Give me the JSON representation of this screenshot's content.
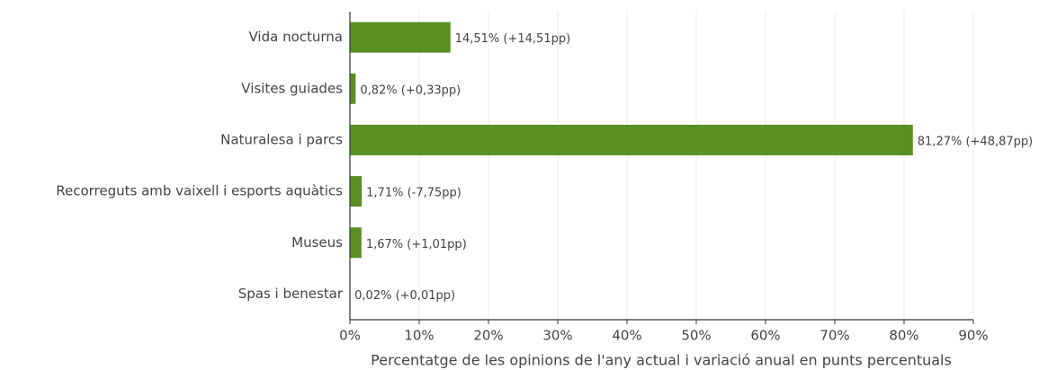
{
  "chart_data": {
    "type": "barh",
    "categories": [
      "Vida nocturna",
      "Visites guiades",
      "Naturalesa i parcs",
      "Recorreguts amb vaixell i esports aquàtics",
      "Museus",
      "Spas i benestar"
    ],
    "values": [
      14.51,
      0.82,
      81.27,
      1.71,
      1.67,
      0.02
    ],
    "value_labels": [
      "14,51% (+14,51pp)",
      "0,82% (+0,33pp)",
      "81,27% (+48,87pp)",
      "1,71% (-7,75pp)",
      "1,67% (+1,01pp)",
      "0,02% (+0,01pp)"
    ],
    "color": "#5b8f22",
    "xlabel": "Percentatge de les opinions de l'any actual i variació anual en punts percentuals",
    "xlim": [
      0,
      90
    ],
    "xticks": [
      {
        "value": 0,
        "label": "0%"
      },
      {
        "value": 10,
        "label": "10%"
      },
      {
        "value": 20,
        "label": "20%"
      },
      {
        "value": 30,
        "label": "30%"
      },
      {
        "value": 40,
        "label": "40%"
      },
      {
        "value": 50,
        "label": "50%"
      },
      {
        "value": 60,
        "label": "60%"
      },
      {
        "value": 70,
        "label": "70%"
      },
      {
        "value": 80,
        "label": "80%"
      },
      {
        "value": 90,
        "label": "90%"
      }
    ],
    "grid": true
  }
}
